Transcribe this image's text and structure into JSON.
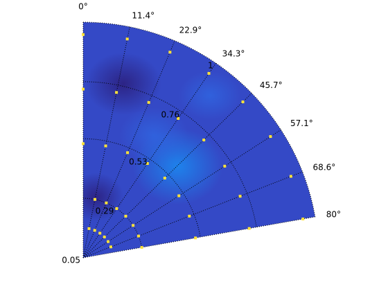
{
  "chart_data": {
    "type": "heatmap",
    "projection": "polar-sector",
    "theta_range_deg": [
      0,
      80
    ],
    "theta_tick_labels": [
      "0°",
      "11.4°",
      "22.9°",
      "34.3°",
      "45.7°",
      "57.1°",
      "68.6°",
      "80°"
    ],
    "theta_tick_values_deg": [
      0,
      11.4,
      22.9,
      34.3,
      45.7,
      57.1,
      68.6,
      80
    ],
    "r_range": [
      0.05,
      1
    ],
    "r_tick_labels": [
      "0.05",
      "0.29",
      "0.53",
      "0.76",
      "1"
    ],
    "r_tick_values": [
      0.05,
      0.29,
      0.53,
      0.76,
      1
    ],
    "grid": true,
    "grid_style": "dotted",
    "colormap": [
      "#2b1d7a",
      "#3a3fc4",
      "#2f6be6",
      "#1a8cf2"
    ],
    "field_color": "#3449c6",
    "marker_color": "#ffe23a",
    "markers": [
      {
        "r": 0.95,
        "theta": 0
      },
      {
        "r": 0.73,
        "theta": 0
      },
      {
        "r": 0.51,
        "theta": 0
      },
      {
        "r": 0.95,
        "theta": 11.4
      },
      {
        "r": 0.73,
        "theta": 11.4
      },
      {
        "r": 0.51,
        "theta": 11.4
      },
      {
        "r": 0.95,
        "theta": 22.9
      },
      {
        "r": 0.73,
        "theta": 22.9
      },
      {
        "r": 0.51,
        "theta": 22.9
      },
      {
        "r": 0.95,
        "theta": 34.3
      },
      {
        "r": 0.73,
        "theta": 34.3
      },
      {
        "r": 0.51,
        "theta": 34.3
      },
      {
        "r": 0.95,
        "theta": 45.7
      },
      {
        "r": 0.73,
        "theta": 45.7
      },
      {
        "r": 0.51,
        "theta": 45.7
      },
      {
        "r": 0.95,
        "theta": 57.1
      },
      {
        "r": 0.73,
        "theta": 57.1
      },
      {
        "r": 0.51,
        "theta": 57.1
      },
      {
        "r": 0.95,
        "theta": 68.6
      },
      {
        "r": 0.73,
        "theta": 68.6
      },
      {
        "r": 0.51,
        "theta": 68.6
      },
      {
        "r": 0.95,
        "theta": 80
      },
      {
        "r": 0.73,
        "theta": 80
      },
      {
        "r": 0.51,
        "theta": 80
      },
      {
        "r": 0.29,
        "theta": 11.4
      },
      {
        "r": 0.29,
        "theta": 22.9
      },
      {
        "r": 0.29,
        "theta": 34.3
      },
      {
        "r": 0.29,
        "theta": 45.7
      },
      {
        "r": 0.29,
        "theta": 57.1
      },
      {
        "r": 0.29,
        "theta": 68.6
      },
      {
        "r": 0.29,
        "theta": 80
      },
      {
        "r": 0.17,
        "theta": 11.4
      },
      {
        "r": 0.17,
        "theta": 22.9
      },
      {
        "r": 0.17,
        "theta": 34.3
      },
      {
        "r": 0.17,
        "theta": 45.7
      },
      {
        "r": 0.17,
        "theta": 57.1
      },
      {
        "r": 0.17,
        "theta": 68.6
      }
    ]
  }
}
